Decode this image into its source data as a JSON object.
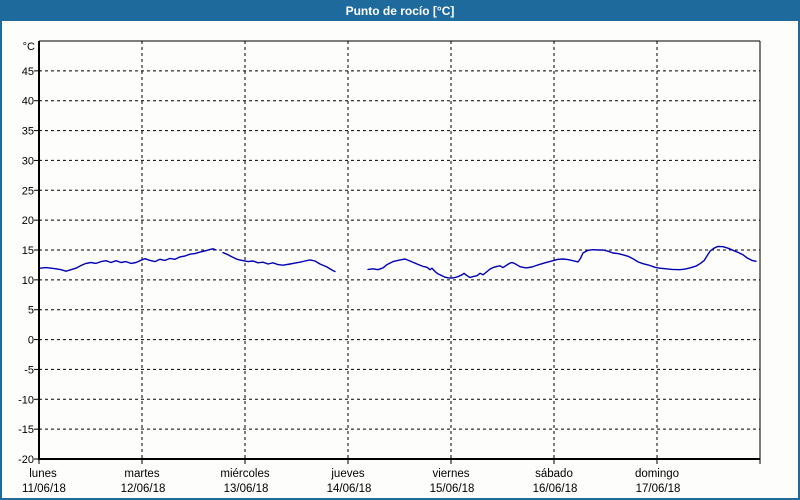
{
  "window": {
    "title": "Punto de rocío [°C]"
  },
  "colors": {
    "titlebar_bg": "#1e6a9c",
    "titlebar_text": "#ffffff",
    "outer_border": "#1e6a9c",
    "chart_bg": "#fdfdfb",
    "frame": "#000000",
    "grid": "#000000",
    "series_line": "#0000b4",
    "label_text": "#000000"
  },
  "chart_data": {
    "type": "line",
    "title": "Punto de rocío [°C]",
    "grid": true,
    "legend_position": "none",
    "y_axis": {
      "unit_label": "°C",
      "min": -20,
      "max": 50,
      "tick_step": 5,
      "tick_labels": [
        "45",
        "40",
        "35",
        "30",
        "25",
        "20",
        "15",
        "10",
        "5",
        "0",
        "-5",
        "-10",
        "-15",
        "-20"
      ],
      "tick_values": [
        45,
        40,
        35,
        30,
        25,
        20,
        15,
        10,
        5,
        0,
        -5,
        -10,
        -15,
        -20
      ],
      "gridline_values": [
        45,
        40,
        35,
        30,
        25,
        20,
        15,
        10,
        5,
        0,
        -5,
        -10,
        -15
      ]
    },
    "x_axis": {
      "span_days": 7,
      "days": [
        {
          "name": "lunes",
          "date": "11/06/18"
        },
        {
          "name": "martes",
          "date": "12/06/18"
        },
        {
          "name": "miércoles",
          "date": "13/06/18"
        },
        {
          "name": "jueves",
          "date": "14/06/18"
        },
        {
          "name": "viernes",
          "date": "15/06/18"
        },
        {
          "name": "sábado",
          "date": "16/06/18"
        },
        {
          "name": "domingo",
          "date": "17/06/18"
        }
      ]
    },
    "series": [
      {
        "name": "Punto de rocío",
        "unit": "°C",
        "color": "#0000b4",
        "segments": [
          [
            [
              0.01,
              11.95
            ],
            [
              0.068,
              12.05
            ],
            [
              0.117,
              11.95
            ],
            [
              0.165,
              11.85
            ],
            [
              0.214,
              11.7
            ],
            [
              0.262,
              11.45
            ],
            [
              0.311,
              11.7
            ],
            [
              0.359,
              11.95
            ],
            [
              0.408,
              12.4
            ],
            [
              0.456,
              12.75
            ],
            [
              0.505,
              12.9
            ],
            [
              0.553,
              12.75
            ],
            [
              0.602,
              13.05
            ],
            [
              0.65,
              13.2
            ],
            [
              0.699,
              12.9
            ],
            [
              0.748,
              13.2
            ],
            [
              0.796,
              12.9
            ],
            [
              0.845,
              13.05
            ],
            [
              0.893,
              12.75
            ],
            [
              0.942,
              12.9
            ],
            [
              0.99,
              13.3
            ],
            [
              1.029,
              13.55
            ],
            [
              1.078,
              13.25
            ],
            [
              1.126,
              13.05
            ],
            [
              1.175,
              13.45
            ],
            [
              1.223,
              13.25
            ],
            [
              1.272,
              13.6
            ],
            [
              1.32,
              13.45
            ],
            [
              1.369,
              13.85
            ],
            [
              1.417,
              14.0
            ],
            [
              1.466,
              14.3
            ],
            [
              1.515,
              14.4
            ],
            [
              1.563,
              14.65
            ],
            [
              1.612,
              14.85
            ],
            [
              1.66,
              15.1
            ],
            [
              1.689,
              15.2
            ],
            [
              1.718,
              15.0
            ]
          ],
          [
            [
              1.786,
              14.55
            ],
            [
              1.825,
              14.3
            ],
            [
              1.874,
              13.85
            ],
            [
              1.922,
              13.45
            ],
            [
              1.971,
              13.25
            ],
            [
              2.029,
              13.05
            ],
            [
              2.078,
              13.15
            ],
            [
              2.126,
              12.85
            ],
            [
              2.175,
              12.95
            ],
            [
              2.223,
              12.65
            ],
            [
              2.272,
              12.85
            ],
            [
              2.32,
              12.55
            ],
            [
              2.369,
              12.45
            ],
            [
              2.437,
              12.65
            ],
            [
              2.485,
              12.8
            ],
            [
              2.534,
              12.95
            ],
            [
              2.583,
              13.15
            ],
            [
              2.631,
              13.35
            ],
            [
              2.68,
              13.15
            ],
            [
              2.728,
              12.65
            ],
            [
              2.796,
              12.15
            ],
            [
              2.854,
              11.55
            ],
            [
              2.874,
              11.4
            ]
          ],
          [
            [
              3.194,
              11.75
            ],
            [
              3.243,
              11.85
            ],
            [
              3.291,
              11.7
            ],
            [
              3.34,
              12.0
            ],
            [
              3.379,
              12.55
            ],
            [
              3.437,
              13.05
            ],
            [
              3.505,
              13.35
            ],
            [
              3.553,
              13.5
            ],
            [
              3.602,
              13.15
            ],
            [
              3.67,
              12.65
            ],
            [
              3.728,
              12.25
            ],
            [
              3.767,
              12.1
            ],
            [
              3.796,
              11.7
            ],
            [
              3.816,
              11.95
            ],
            [
              3.845,
              11.4
            ],
            [
              3.874,
              11.0
            ],
            [
              3.913,
              10.7
            ],
            [
              3.942,
              10.45
            ],
            [
              3.971,
              10.35
            ],
            [
              4.01,
              10.3
            ],
            [
              4.039,
              10.4
            ],
            [
              4.068,
              10.55
            ],
            [
              4.107,
              10.85
            ],
            [
              4.126,
              11.1
            ],
            [
              4.155,
              10.7
            ],
            [
              4.184,
              10.4
            ],
            [
              4.214,
              10.55
            ],
            [
              4.252,
              10.7
            ],
            [
              4.282,
              11.1
            ],
            [
              4.311,
              10.85
            ],
            [
              4.35,
              11.4
            ],
            [
              4.379,
              11.8
            ],
            [
              4.408,
              12.05
            ],
            [
              4.447,
              12.25
            ],
            [
              4.476,
              12.35
            ],
            [
              4.505,
              12.05
            ],
            [
              4.544,
              12.5
            ],
            [
              4.573,
              12.8
            ],
            [
              4.592,
              12.9
            ],
            [
              4.621,
              12.7
            ],
            [
              4.67,
              12.2
            ],
            [
              4.728,
              12.0
            ],
            [
              4.786,
              12.15
            ],
            [
              4.845,
              12.5
            ],
            [
              4.913,
              12.85
            ],
            [
              4.99,
              13.2
            ],
            [
              5.039,
              13.45
            ],
            [
              5.087,
              13.5
            ],
            [
              5.136,
              13.4
            ],
            [
              5.184,
              13.2
            ],
            [
              5.233,
              13.0
            ],
            [
              5.257,
              13.6
            ],
            [
              5.282,
              14.5
            ],
            [
              5.33,
              14.95
            ],
            [
              5.379,
              15.05
            ],
            [
              5.427,
              15.0
            ],
            [
              5.476,
              15.0
            ],
            [
              5.524,
              14.8
            ],
            [
              5.573,
              14.5
            ],
            [
              5.621,
              14.4
            ],
            [
              5.67,
              14.2
            ],
            [
              5.718,
              13.95
            ],
            [
              5.767,
              13.55
            ],
            [
              5.816,
              13.0
            ],
            [
              5.864,
              12.7
            ],
            [
              5.913,
              12.5
            ],
            [
              5.981,
              12.1
            ],
            [
              6.029,
              11.95
            ],
            [
              6.087,
              11.85
            ],
            [
              6.146,
              11.75
            ],
            [
              6.223,
              11.7
            ],
            [
              6.272,
              11.8
            ],
            [
              6.32,
              12.0
            ],
            [
              6.379,
              12.3
            ],
            [
              6.417,
              12.7
            ],
            [
              6.456,
              13.2
            ],
            [
              6.485,
              14.0
            ],
            [
              6.515,
              14.8
            ],
            [
              6.553,
              15.3
            ],
            [
              6.592,
              15.6
            ],
            [
              6.641,
              15.55
            ],
            [
              6.689,
              15.3
            ],
            [
              6.738,
              14.95
            ],
            [
              6.786,
              14.6
            ],
            [
              6.835,
              14.2
            ],
            [
              6.883,
              13.6
            ],
            [
              6.922,
              13.25
            ],
            [
              6.961,
              13.1
            ]
          ]
        ]
      }
    ]
  }
}
